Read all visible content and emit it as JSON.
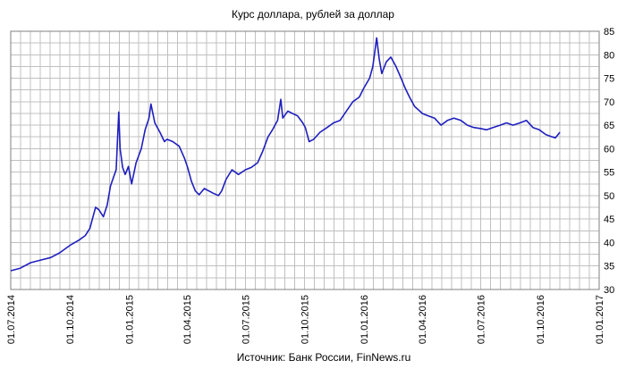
{
  "chart_data": {
    "type": "line",
    "title": "Курс доллара,  рублей за доллар",
    "source": "Источник: Банк России, FinNews.ru",
    "xlabel": "",
    "ylabel": "",
    "grid": true,
    "x_range": [
      "2014-07-01",
      "2017-01-01"
    ],
    "ylim": [
      30,
      85
    ],
    "y_ticks": [
      30,
      35,
      40,
      45,
      50,
      55,
      60,
      65,
      70,
      75,
      80,
      85
    ],
    "x_ticks": [
      {
        "date": "2014-07-01",
        "label": "01.07.2014"
      },
      {
        "date": "2014-10-01",
        "label": "01.10.2014"
      },
      {
        "date": "2015-01-01",
        "label": "01.01.2015"
      },
      {
        "date": "2015-04-01",
        "label": "01.04.2015"
      },
      {
        "date": "2015-07-01",
        "label": "01.07.2015"
      },
      {
        "date": "2015-10-01",
        "label": "01.10.2015"
      },
      {
        "date": "2016-01-01",
        "label": "01.01.2016"
      },
      {
        "date": "2016-04-01",
        "label": "01.04.2016"
      },
      {
        "date": "2016-07-01",
        "label": "01.07.2016"
      },
      {
        "date": "2016-10-01",
        "label": "01.10.2016"
      },
      {
        "date": "2017-01-01",
        "label": "01.01.2017"
      }
    ],
    "series": [
      {
        "color": "#1f1fbf",
        "points": [
          [
            "2014-07-01",
            34.0
          ],
          [
            "2014-07-15",
            34.5
          ],
          [
            "2014-08-01",
            35.7
          ],
          [
            "2014-08-15",
            36.2
          ],
          [
            "2014-09-01",
            36.8
          ],
          [
            "2014-09-15",
            37.8
          ],
          [
            "2014-10-01",
            39.4
          ],
          [
            "2014-10-15",
            40.5
          ],
          [
            "2014-10-25",
            41.5
          ],
          [
            "2014-11-01",
            43.0
          ],
          [
            "2014-11-05",
            45.0
          ],
          [
            "2014-11-10",
            47.5
          ],
          [
            "2014-11-15",
            47.0
          ],
          [
            "2014-11-22",
            45.5
          ],
          [
            "2014-11-28",
            48.0
          ],
          [
            "2014-12-03",
            52.0
          ],
          [
            "2014-12-08",
            54.0
          ],
          [
            "2014-12-12",
            55.5
          ],
          [
            "2014-12-16",
            67.8
          ],
          [
            "2014-12-18",
            60.0
          ],
          [
            "2014-12-22",
            56.0
          ],
          [
            "2014-12-26",
            54.5
          ],
          [
            "2014-12-31",
            56.2
          ],
          [
            "2015-01-05",
            52.5
          ],
          [
            "2015-01-12",
            57.0
          ],
          [
            "2015-01-20",
            60.0
          ],
          [
            "2015-01-26",
            64.0
          ],
          [
            "2015-02-01",
            66.5
          ],
          [
            "2015-02-04",
            69.5
          ],
          [
            "2015-02-10",
            65.5
          ],
          [
            "2015-02-18",
            63.5
          ],
          [
            "2015-02-25",
            61.5
          ],
          [
            "2015-03-01",
            62.0
          ],
          [
            "2015-03-10",
            61.5
          ],
          [
            "2015-03-20",
            60.5
          ],
          [
            "2015-03-28",
            58.0
          ],
          [
            "2015-04-02",
            56.0
          ],
          [
            "2015-04-08",
            53.0
          ],
          [
            "2015-04-14",
            51.0
          ],
          [
            "2015-04-20",
            50.2
          ],
          [
            "2015-04-28",
            51.5
          ],
          [
            "2015-05-05",
            51.0
          ],
          [
            "2015-05-12",
            50.5
          ],
          [
            "2015-05-20",
            50.0
          ],
          [
            "2015-05-25",
            51.0
          ],
          [
            "2015-06-01",
            53.5
          ],
          [
            "2015-06-10",
            55.5
          ],
          [
            "2015-06-20",
            54.5
          ],
          [
            "2015-07-01",
            55.5
          ],
          [
            "2015-07-10",
            56.0
          ],
          [
            "2015-07-20",
            57.0
          ],
          [
            "2015-07-28",
            59.5
          ],
          [
            "2015-08-05",
            62.5
          ],
          [
            "2015-08-12",
            64.0
          ],
          [
            "2015-08-20",
            66.0
          ],
          [
            "2015-08-25",
            70.5
          ],
          [
            "2015-08-28",
            66.5
          ],
          [
            "2015-09-05",
            68.0
          ],
          [
            "2015-09-12",
            67.5
          ],
          [
            "2015-09-20",
            67.0
          ],
          [
            "2015-09-28",
            65.5
          ],
          [
            "2015-10-02",
            64.5
          ],
          [
            "2015-10-08",
            61.5
          ],
          [
            "2015-10-15",
            62.0
          ],
          [
            "2015-10-25",
            63.5
          ],
          [
            "2015-11-05",
            64.5
          ],
          [
            "2015-11-15",
            65.5
          ],
          [
            "2015-11-25",
            66.0
          ],
          [
            "2015-12-05",
            68.0
          ],
          [
            "2015-12-15",
            70.0
          ],
          [
            "2015-12-25",
            71.0
          ],
          [
            "2016-01-01",
            72.9
          ],
          [
            "2016-01-10",
            75.0
          ],
          [
            "2016-01-15",
            77.5
          ],
          [
            "2016-01-21",
            83.6
          ],
          [
            "2016-01-25",
            79.0
          ],
          [
            "2016-01-29",
            76.0
          ],
          [
            "2016-02-05",
            78.5
          ],
          [
            "2016-02-12",
            79.5
          ],
          [
            "2016-02-20",
            77.5
          ],
          [
            "2016-02-28",
            75.0
          ],
          [
            "2016-03-05",
            73.0
          ],
          [
            "2016-03-12",
            71.0
          ],
          [
            "2016-03-20",
            69.0
          ],
          [
            "2016-03-28",
            68.0
          ],
          [
            "2016-04-01",
            67.5
          ],
          [
            "2016-04-10",
            67.0
          ],
          [
            "2016-04-20",
            66.5
          ],
          [
            "2016-04-30",
            65.0
          ],
          [
            "2016-05-10",
            66.0
          ],
          [
            "2016-05-20",
            66.5
          ],
          [
            "2016-05-31",
            66.0
          ],
          [
            "2016-06-10",
            65.0
          ],
          [
            "2016-06-20",
            64.5
          ],
          [
            "2016-06-30",
            64.3
          ],
          [
            "2016-07-10",
            64.0
          ],
          [
            "2016-07-20",
            64.5
          ],
          [
            "2016-07-31",
            65.0
          ],
          [
            "2016-08-10",
            65.5
          ],
          [
            "2016-08-20",
            65.0
          ],
          [
            "2016-08-31",
            65.5
          ],
          [
            "2016-09-10",
            66.0
          ],
          [
            "2016-09-20",
            64.5
          ],
          [
            "2016-09-30",
            64.0
          ],
          [
            "2016-10-10",
            63.0
          ],
          [
            "2016-10-20",
            62.5
          ],
          [
            "2016-10-25",
            62.3
          ],
          [
            "2016-11-01",
            63.5
          ]
        ]
      }
    ]
  }
}
